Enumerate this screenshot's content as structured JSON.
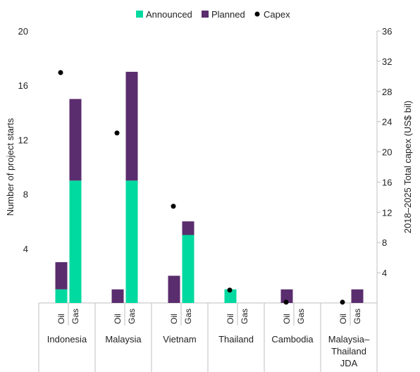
{
  "chart_data": {
    "type": "bar",
    "stacked": true,
    "legend_position": "top",
    "legend": [
      {
        "label": "Announced",
        "kind": "bar",
        "color": "#00d9a0"
      },
      {
        "label": "Planned",
        "kind": "bar",
        "color": "#5a2d6e"
      },
      {
        "label": "Capex",
        "kind": "dot",
        "color": "#000000"
      }
    ],
    "ylabel": "Number of project starts",
    "y2label": "2018–2025 Total capex (US$ bil)",
    "ylim": [
      0,
      20
    ],
    "y2lim": [
      0,
      36
    ],
    "y_ticks": [
      "4",
      "8",
      "12",
      "16",
      "20"
    ],
    "y2_ticks": [
      "4",
      "8",
      "12",
      "16",
      "20",
      "24",
      "28",
      "32",
      "36"
    ],
    "grid": false,
    "groups": [
      {
        "name": "Indonesia",
        "capex": 30.5,
        "bars": [
          {
            "label": "Oil",
            "announced": 1,
            "planned": 2
          },
          {
            "label": "Gas",
            "announced": 9,
            "planned": 6
          }
        ]
      },
      {
        "name": "Malaysia",
        "capex": 22.5,
        "bars": [
          {
            "label": "Oil",
            "announced": 0,
            "planned": 1
          },
          {
            "label": "Gas",
            "announced": 9,
            "planned": 8
          }
        ]
      },
      {
        "name": "Vietnam",
        "capex": 12.8,
        "bars": [
          {
            "label": "Oil",
            "announced": 0,
            "planned": 2
          },
          {
            "label": "Gas",
            "announced": 5,
            "planned": 1
          }
        ]
      },
      {
        "name": "Thailand",
        "capex": 1.7,
        "bars": [
          {
            "label": "Oil",
            "announced": 1,
            "planned": 0
          },
          {
            "label": "Gas",
            "announced": 0,
            "planned": 0
          }
        ]
      },
      {
        "name": "Cambodia",
        "capex": 0.1,
        "bars": [
          {
            "label": "Oil",
            "announced": 0,
            "planned": 1
          },
          {
            "label": "Gas",
            "announced": 0,
            "planned": 0
          }
        ]
      },
      {
        "name": "Malaysia–\nThailand\nJDA",
        "capex": 0.1,
        "bars": [
          {
            "label": "Oil",
            "announced": 0,
            "planned": 0
          },
          {
            "label": "Gas",
            "announced": 0,
            "planned": 1
          }
        ]
      }
    ]
  }
}
